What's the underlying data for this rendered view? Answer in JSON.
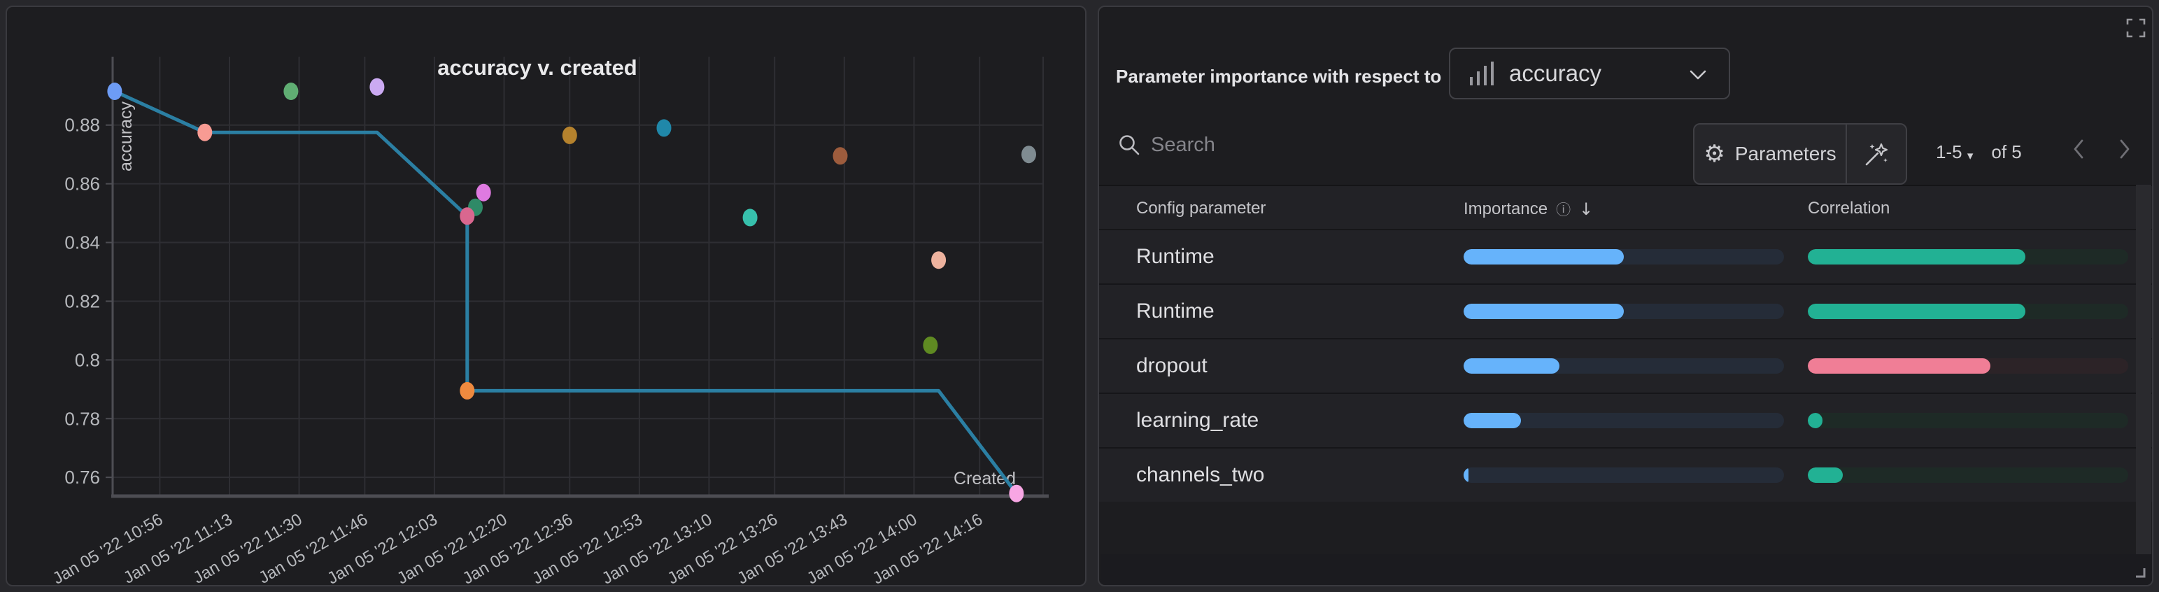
{
  "chart_data": {
    "type": "scatter",
    "title": "accuracy v. created",
    "x_axis_label": "Created",
    "y_axis_label": "accuracy",
    "x_range_minutes": [
      644.5,
      871.5
    ],
    "y_range": [
      0.7536,
      0.9033
    ],
    "grid": true,
    "x_ticks": [
      {
        "m": 656,
        "label": "Jan 05 '22 10:56"
      },
      {
        "m": 673,
        "label": "Jan 05 '22 11:13"
      },
      {
        "m": 690,
        "label": "Jan 05 '22 11:30"
      },
      {
        "m": 706,
        "label": "Jan 05 '22 11:46"
      },
      {
        "m": 723,
        "label": "Jan 05 '22 12:03"
      },
      {
        "m": 740,
        "label": "Jan 05 '22 12:20"
      },
      {
        "m": 756,
        "label": "Jan 05 '22 12:36"
      },
      {
        "m": 773,
        "label": "Jan 05 '22 12:53"
      },
      {
        "m": 790,
        "label": "Jan 05 '22 13:10"
      },
      {
        "m": 806,
        "label": "Jan 05 '22 13:26"
      },
      {
        "m": 823,
        "label": "Jan 05 '22 13:43"
      },
      {
        "m": 840,
        "label": "Jan 05 '22 14:00"
      },
      {
        "m": 856,
        "label": "Jan 05 '22 14:16"
      }
    ],
    "y_ticks": [
      {
        "v": 0.88,
        "label": "0.88"
      },
      {
        "v": 0.86,
        "label": "0.86"
      },
      {
        "v": 0.84,
        "label": "0.84"
      },
      {
        "v": 0.82,
        "label": "0.82"
      },
      {
        "v": 0.8,
        "label": "0.8"
      },
      {
        "v": 0.78,
        "label": "0.78"
      },
      {
        "v": 0.76,
        "label": "0.76"
      }
    ],
    "line_series": {
      "color": "#2b7fa3",
      "points": [
        [
          645,
          0.8915
        ],
        [
          667,
          0.8775
        ],
        [
          709,
          0.8775
        ],
        [
          731,
          0.849
        ],
        [
          731,
          0.7895
        ],
        [
          846,
          0.7895
        ],
        [
          865,
          0.7545
        ]
      ]
    },
    "scatter_points": [
      {
        "m": 645,
        "acc": 0.8915,
        "color": "#6d9cf5"
      },
      {
        "m": 667,
        "acc": 0.8775,
        "color": "#f89b93"
      },
      {
        "m": 688,
        "acc": 0.8915,
        "color": "#60ae73"
      },
      {
        "m": 709,
        "acc": 0.893,
        "color": "#cbaaf2"
      },
      {
        "m": 735,
        "acc": 0.857,
        "color": "#df7ae1"
      },
      {
        "m": 733,
        "acc": 0.852,
        "color": "#2f8a67"
      },
      {
        "m": 731,
        "acc": 0.849,
        "color": "#d9678f"
      },
      {
        "m": 731,
        "acc": 0.7895,
        "color": "#ee8a3f"
      },
      {
        "m": 756,
        "acc": 0.8765,
        "color": "#b5822d"
      },
      {
        "m": 779,
        "acc": 0.879,
        "color": "#2088a9"
      },
      {
        "m": 800,
        "acc": 0.8485,
        "color": "#37c0ac"
      },
      {
        "m": 822,
        "acc": 0.8695,
        "color": "#9d5c3d"
      },
      {
        "m": 846,
        "acc": 0.834,
        "color": "#edb29e"
      },
      {
        "m": 844,
        "acc": 0.805,
        "color": "#5f8a22"
      },
      {
        "m": 868,
        "acc": 0.87,
        "color": "#7f8b91"
      },
      {
        "m": 865,
        "acc": 0.7545,
        "color": "#f8a6e4"
      }
    ],
    "style": {
      "grid_color": "#2e2e33",
      "axis_color": "#4d4d53",
      "tick_text_color": "#b6b8bc",
      "label_text_color": "#c2c2c6",
      "title_color": "#e9e9eb"
    }
  },
  "right_panel": {
    "header_label": "Parameter importance with respect to",
    "metric_selector_value": "accuracy",
    "search_placeholder": "Search",
    "parameters_button_label": "Parameters",
    "pagination": {
      "range": "1-5",
      "caret": "▾",
      "of": "of 5"
    },
    "table": {
      "col_config": "Config parameter",
      "col_importance": "Importance",
      "col_correlation": "Correlation",
      "info_glyph": "ⓘ",
      "sort_glyph": "↓",
      "importance_fill": "#66b3fb",
      "correlation_fill": "#22b194",
      "correlation_neg_fill": "#f07e96",
      "rows": [
        {
          "name": "Runtime",
          "importance": 0.5,
          "correlation": 0.68,
          "negative": false
        },
        {
          "name": "Runtime",
          "importance": 0.5,
          "correlation": 0.68,
          "negative": false
        },
        {
          "name": "dropout",
          "importance": 0.3,
          "correlation": 0.57,
          "negative": true
        },
        {
          "name": "learning_rate",
          "importance": 0.18,
          "correlation": 0.045,
          "negative": false
        },
        {
          "name": "channels_two",
          "importance": 0.015,
          "correlation": 0.11,
          "negative": false
        }
      ]
    }
  }
}
